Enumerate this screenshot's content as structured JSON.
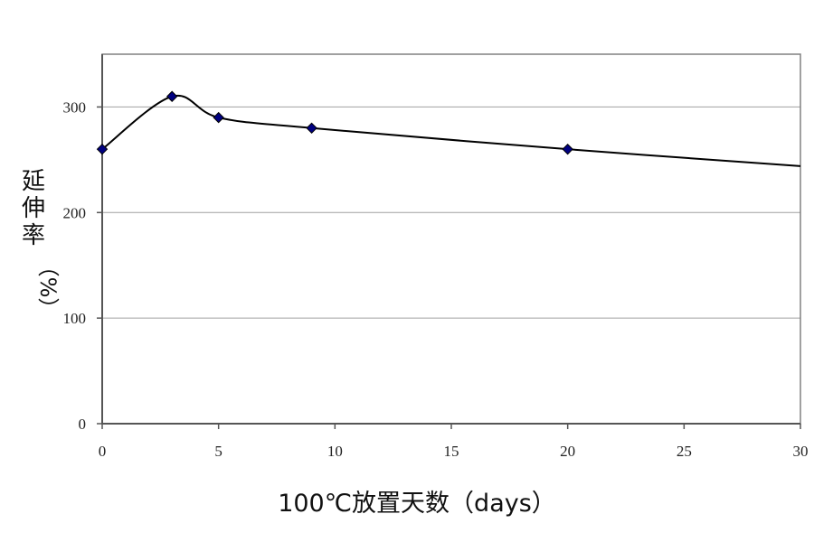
{
  "chart_data": {
    "type": "line",
    "title": "",
    "xlabel": "100℃放置天数（days）",
    "ylabel_lines": [
      "延",
      "伸",
      "率",
      "（%）"
    ],
    "x_ticks": [
      "0",
      "5",
      "10",
      "15",
      "20",
      "25",
      "30"
    ],
    "y_ticks": [
      "0",
      "100",
      "200",
      "300"
    ],
    "xlim": [
      0,
      30
    ],
    "ylim": [
      0,
      350
    ],
    "grid": true,
    "legend": "none",
    "series": [
      {
        "x": [
          0,
          3,
          5,
          9,
          20
        ],
        "values": [
          260,
          310,
          290,
          280,
          260
        ],
        "marker": "diamond",
        "color": "#000080"
      }
    ],
    "trend_end": {
      "x": 30,
      "value": 244
    }
  }
}
